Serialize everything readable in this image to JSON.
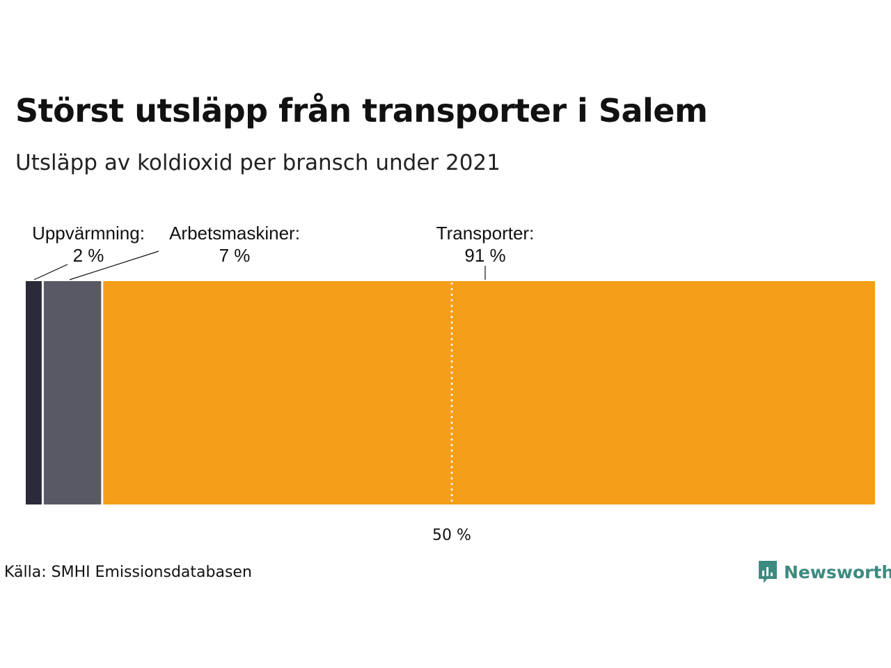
{
  "header": {
    "title": "Störst utsläpp från transporter i Salem",
    "subtitle": "Utsläpp av koldioxid per bransch under 2021"
  },
  "chart_data": {
    "type": "bar",
    "orientation": "horizontal-stacked-100",
    "categories": [
      "Uppvärmning",
      "Arbetsmaskiner",
      "Transporter"
    ],
    "series": [
      {
        "category": "Uppvärmning",
        "label": "Uppvärmning:",
        "value_label": "2 %",
        "value": 2,
        "color": "#2a2a38"
      },
      {
        "category": "Arbetsmaskiner",
        "label": "Arbetsmaskiner:",
        "value_label": "7 %",
        "value": 7,
        "color": "#595966"
      },
      {
        "category": "Transporter",
        "label": "Transporter:",
        "value_label": "91 %",
        "value": 91,
        "color": "#f59e1a"
      }
    ],
    "reference_line": {
      "value": 50,
      "label": "50 %",
      "color": "#ffffff",
      "style": "dotted"
    },
    "xlim": [
      0,
      100
    ],
    "grid": false,
    "legend": "none"
  },
  "footer": {
    "source": "Källa: SMHI Emissionsdatabasen",
    "brand": "Newsworthy",
    "brand_color": "#3d8a80",
    "brand_icon": "bar-chart-speech-bubble-icon"
  }
}
